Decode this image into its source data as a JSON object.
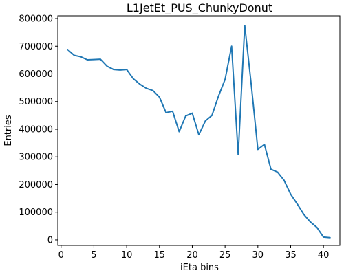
{
  "chart_data": {
    "type": "line",
    "title": "L1JetEt_PUS_ChunkyDonut",
    "xlabel": "iEta bins",
    "ylabel": "Entries",
    "xlim": [
      -0.5,
      42.5
    ],
    "ylim": [
      -20000,
      810000
    ],
    "xticks": [
      0,
      5,
      10,
      15,
      20,
      25,
      30,
      35,
      40
    ],
    "yticks": [
      0,
      100000,
      200000,
      300000,
      400000,
      500000,
      600000,
      700000,
      800000
    ],
    "xtick_labels": [
      "0",
      "5",
      "10",
      "15",
      "20",
      "25",
      "30",
      "35",
      "40"
    ],
    "ytick_labels": [
      "0",
      "100000",
      "200000",
      "300000",
      "400000",
      "500000",
      "600000",
      "700000",
      "800000"
    ],
    "grid": false,
    "series": [
      {
        "color": "#1f77b4",
        "x": [
          1,
          2,
          3,
          4,
          5,
          6,
          7,
          8,
          9,
          10,
          11,
          12,
          13,
          14,
          15,
          16,
          17,
          18,
          19,
          20,
          21,
          22,
          23,
          24,
          25,
          26,
          27,
          28,
          29,
          30,
          31,
          32,
          33,
          34,
          35,
          36,
          37,
          38,
          39,
          40,
          41
        ],
        "y": [
          688000,
          667000,
          662000,
          651000,
          652000,
          653000,
          628000,
          616000,
          614000,
          616000,
          583000,
          563000,
          548000,
          540000,
          516000,
          460000,
          465000,
          391000,
          448000,
          458000,
          380000,
          430000,
          450000,
          520000,
          580000,
          700000,
          308000,
          775000,
          560000,
          327000,
          345000,
          255000,
          245000,
          215000,
          165000,
          130000,
          92000,
          65000,
          45000,
          10000,
          8000
        ]
      }
    ]
  }
}
